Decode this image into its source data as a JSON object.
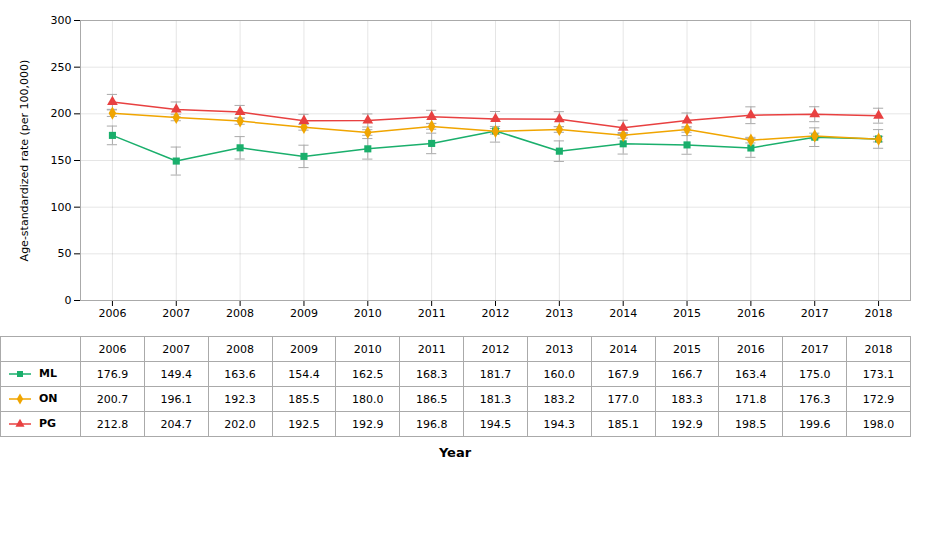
{
  "chart_data": {
    "type": "line",
    "x": [
      2006,
      2007,
      2008,
      2009,
      2010,
      2011,
      2012,
      2013,
      2014,
      2015,
      2016,
      2017,
      2018
    ],
    "xlim": [
      2005.5,
      2018.5
    ],
    "xticks": [
      2006,
      2007,
      2008,
      2009,
      2010,
      2011,
      2012,
      2013,
      2014,
      2015,
      2016,
      2017,
      2018
    ],
    "ylim": [
      0,
      300
    ],
    "yticks": [
      0,
      50,
      100,
      150,
      200,
      250,
      300
    ],
    "xlabel": "Year",
    "ylabel": "Age-standardized rate (per 100,000)",
    "grid": true,
    "series": [
      {
        "name": "ML",
        "color": "#1aaf6c",
        "marker": "square",
        "values": [
          176.9,
          149.4,
          163.6,
          154.4,
          162.5,
          168.3,
          181.7,
          160.0,
          167.9,
          166.7,
          163.4,
          175.0,
          173.1
        ],
        "errors": [
          10,
          15,
          12,
          12,
          11,
          11,
          12,
          11,
          11,
          10,
          10,
          10,
          10
        ],
        "value_labels": [
          "176.9",
          "149.4",
          "163.6",
          "154.4",
          "162.5",
          "168.3",
          "181.7",
          "160.0",
          "167.9",
          "166.7",
          "163.4",
          "175.0",
          "173.1"
        ]
      },
      {
        "name": "ON",
        "color": "#f0a500",
        "marker": "diamond",
        "values": [
          200.7,
          196.1,
          192.3,
          185.5,
          180.0,
          186.5,
          181.3,
          183.2,
          177.0,
          183.3,
          171.8,
          176.3,
          172.9
        ],
        "errors": [
          3.5,
          3.5,
          3.5,
          3,
          3,
          3,
          3,
          3,
          3,
          3,
          3,
          3,
          3
        ],
        "value_labels": [
          "200.7",
          "196.1",
          "192.3",
          "185.5",
          "180.0",
          "186.5",
          "181.3",
          "183.2",
          "177.0",
          "183.3",
          "171.8",
          "176.3",
          "172.9"
        ]
      },
      {
        "name": "PG",
        "color": "#e84040",
        "marker": "triangle",
        "values": [
          212.8,
          204.7,
          202.0,
          192.5,
          192.9,
          196.8,
          194.5,
          194.3,
          185.1,
          192.9,
          198.5,
          199.6,
          198.0
        ],
        "errors": [
          8,
          8,
          7,
          7,
          7,
          7,
          8,
          8,
          8,
          8,
          9,
          8,
          8
        ],
        "value_labels": [
          "212.8",
          "204.7",
          "202.0",
          "192.5",
          "192.9",
          "196.8",
          "194.5",
          "194.3",
          "185.1",
          "192.9",
          "198.5",
          "199.6",
          "198.0"
        ]
      }
    ]
  }
}
